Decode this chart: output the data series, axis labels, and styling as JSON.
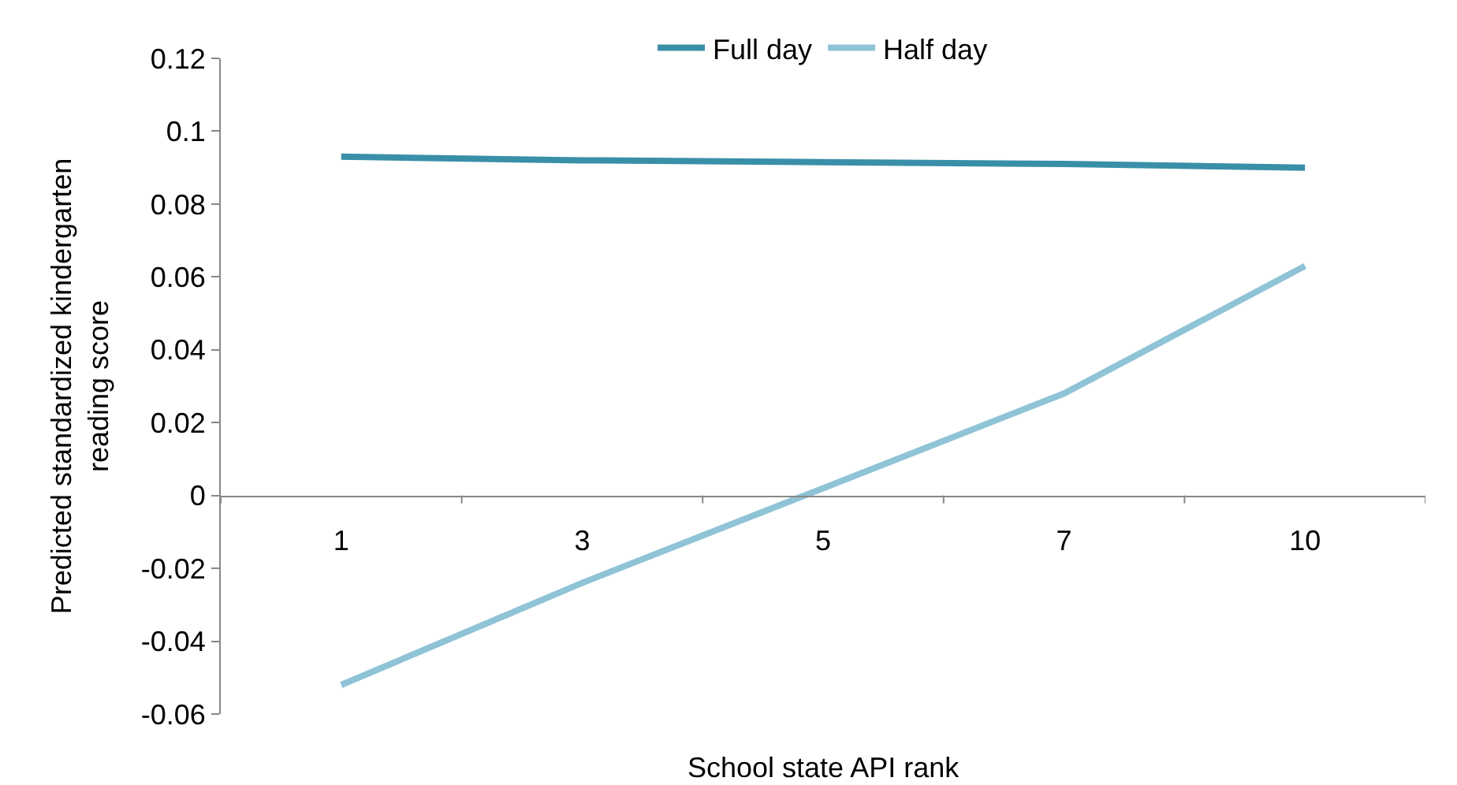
{
  "chart_data": {
    "type": "line",
    "xlabel": "School state API rank",
    "ylabel": "Predicted standardized kindergarten reading score",
    "categories": [
      "1",
      "3",
      "5",
      "7",
      "10"
    ],
    "series": [
      {
        "name": "Full day",
        "color": "#3a8fa8",
        "values": [
          0.093,
          0.092,
          0.0915,
          0.091,
          0.09
        ]
      },
      {
        "name": "Half day",
        "color": "#8fc3d6",
        "values": [
          -0.052,
          -0.024,
          0.002,
          0.028,
          0.063
        ]
      }
    ],
    "ylim": [
      -0.06,
      0.12
    ],
    "yticks": [
      -0.06,
      -0.04,
      -0.02,
      0,
      0.02,
      0.04,
      0.06,
      0.08,
      0.1,
      0.12
    ],
    "legend": "top",
    "marker": "none",
    "line_style": "solid"
  }
}
